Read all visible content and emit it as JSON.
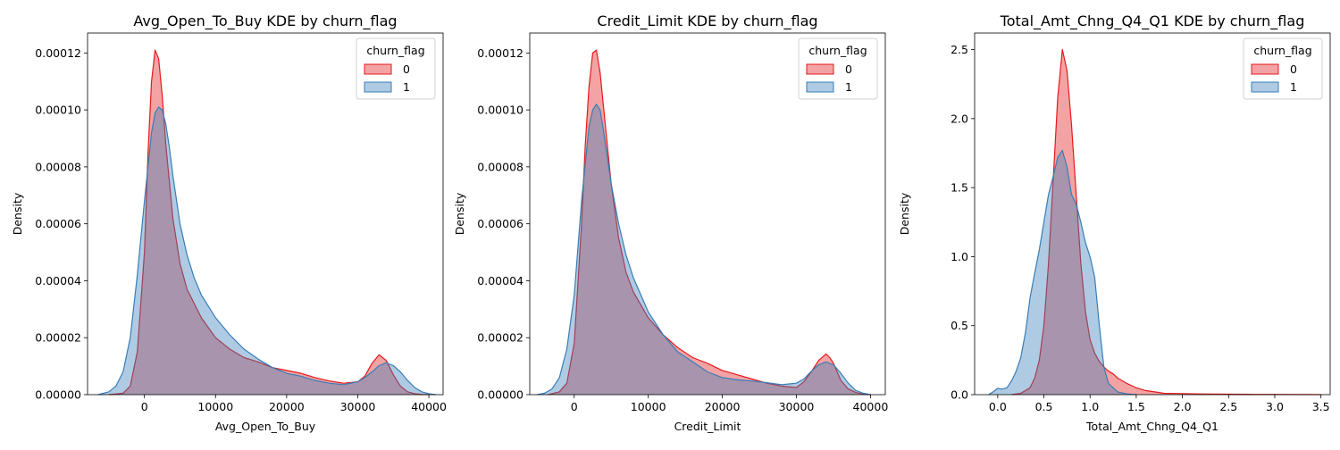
{
  "palette": {
    "0": "#e41a1c",
    "1": "#377eb8"
  },
  "chart_data": [
    {
      "type": "area",
      "title": "Avg_Open_To_Buy KDE by churn_flag",
      "xlabel": "Avg_Open_To_Buy",
      "ylabel": "Density",
      "xlim": [
        -8000,
        42000
      ],
      "ylim": [
        0,
        0.000127
      ],
      "xticks": [
        0,
        10000,
        20000,
        30000,
        40000
      ],
      "xtick_labels": [
        "0",
        "10000",
        "20000",
        "30000",
        "40000"
      ],
      "yticks": [
        0,
        2e-05,
        4e-05,
        6e-05,
        8e-05,
        0.0001,
        0.00012
      ],
      "ytick_labels": [
        "0.00000",
        "0.00002",
        "0.00004",
        "0.00006",
        "0.00008",
        "0.00010",
        "0.00012"
      ],
      "legend": {
        "title": "churn_flag",
        "position": "top-right"
      },
      "series": [
        {
          "name": "0",
          "x": [
            -5000,
            -3000,
            -2000,
            -1000,
            0,
            500,
            1000,
            1500,
            2000,
            2500,
            3000,
            4000,
            5000,
            6000,
            8000,
            10000,
            12000,
            14000,
            16000,
            18000,
            20000,
            22000,
            24000,
            26000,
            28000,
            30000,
            31000,
            32000,
            33000,
            34000,
            35000,
            36000,
            37000,
            38000,
            39000,
            40000
          ],
          "y": [
            0,
            5e-07,
            3e-06,
            1.5e-05,
            5e-05,
            8.5e-05,
            0.00011,
            0.000121,
            0.000118,
            0.000105,
            8.8e-05,
            6.2e-05,
            4.6e-05,
            3.7e-05,
            2.7e-05,
            2e-05,
            1.6e-05,
            1.3e-05,
            1.15e-05,
            9.5e-06,
            8.5e-06,
            7.5e-06,
            6e-06,
            4.8e-06,
            4e-06,
            4.5e-06,
            6.5e-06,
            1.1e-05,
            1.4e-05,
            1.2e-05,
            7e-06,
            3e-06,
            1e-06,
            3e-07,
            1e-07,
            0
          ]
        },
        {
          "name": "1",
          "x": [
            -6500,
            -5000,
            -4000,
            -3000,
            -2000,
            -1000,
            0,
            1000,
            1500,
            2000,
            2500,
            3000,
            3500,
            4000,
            5000,
            6000,
            7000,
            8000,
            10000,
            12000,
            14000,
            16000,
            18000,
            20000,
            22000,
            24000,
            26000,
            28000,
            30000,
            31000,
            32000,
            33000,
            34000,
            35000,
            36000,
            37000,
            38000,
            39000,
            40000,
            41000
          ],
          "y": [
            0,
            1e-06,
            3e-06,
            8e-06,
            2e-05,
            4.2e-05,
            6.8e-05,
            9.2e-05,
            9.9e-05,
            0.000101,
            0.0001,
            9.5e-05,
            8.7e-05,
            7.7e-05,
            6e-05,
            4.9e-05,
            4.1e-05,
            3.5e-05,
            2.7e-05,
            2.1e-05,
            1.6e-05,
            1.25e-05,
            9.5e-06,
            7.5e-06,
            6.5e-06,
            5e-06,
            4e-06,
            3.5e-06,
            4.5e-06,
            6e-06,
            8e-06,
            1.02e-05,
            1.12e-05,
            1.02e-05,
            8e-06,
            5e-06,
            2.5e-06,
            1e-06,
            3e-07,
            0
          ]
        }
      ]
    },
    {
      "type": "area",
      "title": "Credit_Limit KDE by churn_flag",
      "xlabel": "Credit_Limit",
      "ylabel": "Density",
      "xlim": [
        -6000,
        42000
      ],
      "ylim": [
        0,
        0.000127
      ],
      "xticks": [
        0,
        10000,
        20000,
        30000,
        40000
      ],
      "xtick_labels": [
        "0",
        "10000",
        "20000",
        "30000",
        "40000"
      ],
      "yticks": [
        0,
        2e-05,
        4e-05,
        6e-05,
        8e-05,
        0.0001,
        0.00012
      ],
      "ytick_labels": [
        "0.00000",
        "0.00002",
        "0.00004",
        "0.00006",
        "0.00008",
        "0.00010",
        "0.00012"
      ],
      "legend": {
        "title": "churn_flag",
        "position": "top-right"
      },
      "series": [
        {
          "name": "0",
          "x": [
            -3500,
            -2000,
            -1000,
            0,
            1000,
            1500,
            2000,
            2500,
            3000,
            3500,
            4000,
            5000,
            6000,
            7000,
            8000,
            10000,
            12000,
            14000,
            16000,
            18000,
            20000,
            22000,
            24000,
            26000,
            28000,
            30000,
            31000,
            32000,
            33000,
            34000,
            34500,
            35000,
            36000,
            37000,
            38000,
            39000,
            40000
          ],
          "y": [
            0,
            1e-06,
            4e-06,
            1.8e-05,
            6e-05,
            8.8e-05,
            0.000108,
            0.00012,
            0.000121,
            0.000113,
            0.0001,
            7.4e-05,
            5.5e-05,
            4.3e-05,
            3.6e-05,
            2.7e-05,
            2.1e-05,
            1.65e-05,
            1.3e-05,
            1.1e-05,
            8.5e-06,
            7e-06,
            5.5e-06,
            4e-06,
            3e-06,
            2.5e-06,
            4.5e-06,
            8e-06,
            1.2e-05,
            1.43e-05,
            1.3e-05,
            1.1e-05,
            5e-06,
            2e-06,
            8e-07,
            2e-07,
            0
          ]
        },
        {
          "name": "1",
          "x": [
            -5000,
            -4000,
            -3000,
            -2000,
            -1000,
            0,
            1000,
            2000,
            2500,
            3000,
            3500,
            4000,
            5000,
            6000,
            7000,
            8000,
            10000,
            12000,
            14000,
            16000,
            18000,
            20000,
            22000,
            24000,
            26000,
            28000,
            30000,
            31000,
            32000,
            33000,
            34000,
            35000,
            36000,
            37000,
            38000,
            39000,
            40000
          ],
          "y": [
            0,
            5e-07,
            2e-06,
            6e-06,
            1.6e-05,
            3.5e-05,
            6.8e-05,
            9.4e-05,
            0.0001,
            0.000102,
            0.0001,
            9.2e-05,
            7.4e-05,
            6e-05,
            4.9e-05,
            4.1e-05,
            2.9e-05,
            2.1e-05,
            1.5e-05,
            1.15e-05,
            8e-06,
            6e-06,
            5.2e-06,
            4.8e-06,
            4.2e-06,
            3.5e-06,
            4e-06,
            5.5e-06,
            8.2e-06,
            1.05e-05,
            1.15e-05,
            1.05e-05,
            7.5e-06,
            4e-06,
            1.5e-06,
            5e-07,
            0
          ]
        }
      ]
    },
    {
      "type": "area",
      "title": "Total_Amt_Chng_Q4_Q1 KDE by churn_flag",
      "xlabel": "Total_Amt_Chng_Q4_Q1",
      "ylabel": "Density",
      "xlim": [
        -0.25,
        3.6
      ],
      "ylim": [
        0,
        2.62
      ],
      "xticks": [
        0,
        0.5,
        1,
        1.5,
        2,
        2.5,
        3,
        3.5
      ],
      "xtick_labels": [
        "0.0",
        "0.5",
        "1.0",
        "1.5",
        "2.0",
        "2.5",
        "3.0",
        "3.5"
      ],
      "yticks": [
        0,
        0.5,
        1,
        1.5,
        2,
        2.5
      ],
      "ytick_labels": [
        "0.0",
        "0.5",
        "1.0",
        "1.5",
        "2.0",
        "2.5"
      ],
      "legend": {
        "title": "churn_flag",
        "position": "top-right"
      },
      "series": [
        {
          "name": "0",
          "x": [
            0.15,
            0.25,
            0.35,
            0.4,
            0.45,
            0.5,
            0.55,
            0.6,
            0.65,
            0.7,
            0.75,
            0.8,
            0.85,
            0.9,
            0.95,
            1.0,
            1.05,
            1.1,
            1.15,
            1.2,
            1.25,
            1.3,
            1.4,
            1.5,
            1.6,
            1.7,
            1.8,
            2.0,
            2.2,
            2.5,
            2.8,
            3.0,
            3.2,
            3.4,
            3.5
          ],
          "y": [
            0,
            0.01,
            0.05,
            0.12,
            0.25,
            0.5,
            0.95,
            1.55,
            2.15,
            2.5,
            2.35,
            1.95,
            1.45,
            0.95,
            0.6,
            0.4,
            0.3,
            0.24,
            0.2,
            0.17,
            0.15,
            0.12,
            0.08,
            0.05,
            0.03,
            0.02,
            0.01,
            0.008,
            0.005,
            0.003,
            0.002,
            0.002,
            0.001,
            0.001,
            0
          ]
        },
        {
          "name": "1",
          "x": [
            -0.1,
            -0.05,
            0,
            0.05,
            0.1,
            0.15,
            0.2,
            0.25,
            0.3,
            0.35,
            0.4,
            0.45,
            0.5,
            0.55,
            0.6,
            0.65,
            0.7,
            0.75,
            0.8,
            0.85,
            0.9,
            0.95,
            1.0,
            1.05,
            1.1,
            1.15,
            1.2,
            1.3,
            1.4,
            1.5
          ],
          "y": [
            0,
            0.02,
            0.045,
            0.04,
            0.05,
            0.1,
            0.17,
            0.27,
            0.45,
            0.7,
            0.88,
            1.05,
            1.25,
            1.45,
            1.58,
            1.72,
            1.77,
            1.65,
            1.45,
            1.38,
            1.25,
            1.1,
            1.0,
            0.85,
            0.5,
            0.2,
            0.08,
            0.02,
            0.005,
            0
          ]
        }
      ]
    }
  ]
}
